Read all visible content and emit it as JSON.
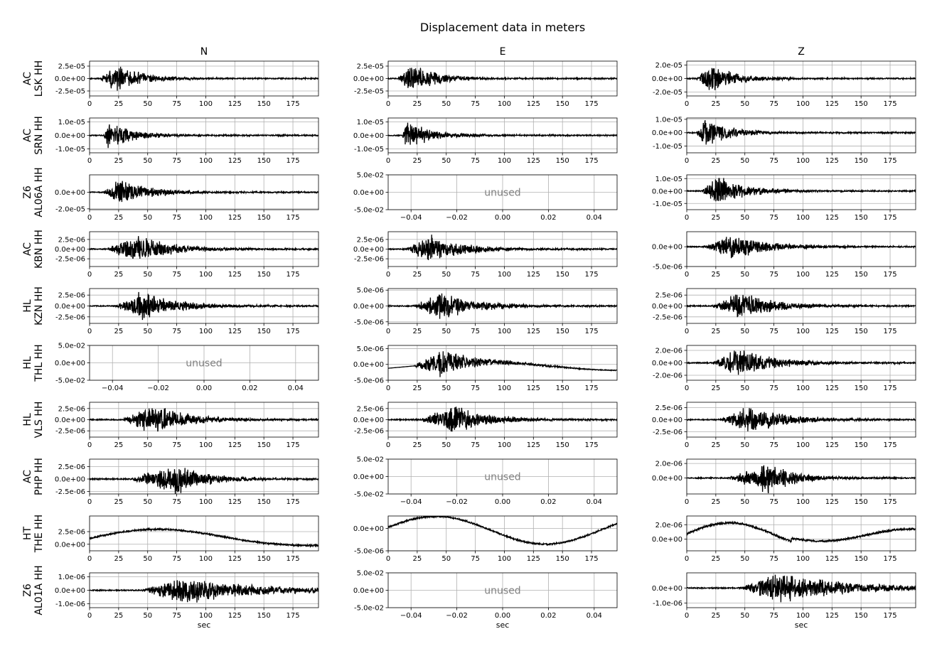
{
  "chart_data": {
    "type": "line",
    "title": "Displacement data in meters",
    "columns": [
      "N",
      "E",
      "Z"
    ],
    "xlabel": "sec",
    "unused_label": "unused",
    "grid": true,
    "line_color": "#000000",
    "unused_color": "#808080",
    "time_xlim": [
      0,
      197
    ],
    "time_xticks": [
      0,
      25,
      50,
      75,
      100,
      125,
      150,
      175
    ],
    "time_xtick_labels": [
      "0",
      "25",
      "50",
      "75",
      "100",
      "125",
      "150",
      "175"
    ],
    "unused_xlim": [
      -0.05,
      0.05
    ],
    "unused_xticks": [
      -0.04,
      -0.02,
      0.0,
      0.02,
      0.04
    ],
    "unused_xtick_labels": [
      "−0.04",
      "−0.02",
      "0.00",
      "0.02",
      "0.04"
    ],
    "unused_ylim": [
      -0.05,
      0.05
    ],
    "unused_yticks": [
      -0.05,
      0.0,
      0.05
    ],
    "unused_ytick_labels": [
      "-5.0e-02",
      "0.0e+00",
      "5.0e-02"
    ],
    "rows": [
      {
        "network": "AC",
        "station": "LSK HH",
        "panels": [
          {
            "column": "N",
            "used": true,
            "ylim": [
              -3.5e-05,
              3.5e-05
            ],
            "yticks": [
              2.5e-05,
              0,
              -2.5e-05
            ],
            "ytick_labels": [
              "2.5e-05",
              "0.0e+00",
              "-2.5e-05"
            ],
            "onset": 8,
            "peak_time": 25,
            "peak_amp": 3.3e-05,
            "decay": 22,
            "drift": 0
          },
          {
            "column": "E",
            "used": true,
            "ylim": [
              -3.5e-05,
              3.5e-05
            ],
            "yticks": [
              2.5e-05,
              0,
              -2.5e-05
            ],
            "ytick_labels": [
              "2.5e-05",
              "0.0e+00",
              "-2.5e-05"
            ],
            "onset": 8,
            "peak_time": 20,
            "peak_amp": 3.2e-05,
            "decay": 22,
            "drift": 0
          },
          {
            "column": "Z",
            "used": true,
            "ylim": [
              -2.6e-05,
              2.6e-05
            ],
            "yticks": [
              2e-05,
              0,
              -2e-05
            ],
            "ytick_labels": [
              "2.0e-05",
              "0.0e+00",
              "-2.0e-05"
            ],
            "onset": 8,
            "peak_time": 20,
            "peak_amp": 2.4e-05,
            "decay": 22,
            "drift": 0
          }
        ]
      },
      {
        "network": "AC",
        "station": "SRN HH",
        "panels": [
          {
            "column": "N",
            "used": true,
            "ylim": [
              -1.3e-05,
              1.3e-05
            ],
            "yticks": [
              1e-05,
              0,
              -1e-05
            ],
            "ytick_labels": [
              "1.0e-05",
              "0.0e+00",
              "-1.0e-05"
            ],
            "onset": 12,
            "peak_time": 16,
            "peak_amp": 1.2e-05,
            "decay": 22,
            "drift": 0
          },
          {
            "column": "E",
            "used": true,
            "ylim": [
              -1.3e-05,
              1.3e-05
            ],
            "yticks": [
              1e-05,
              0,
              -1e-05
            ],
            "ytick_labels": [
              "1.0e-05",
              "0.0e+00",
              "-1.0e-05"
            ],
            "onset": 12,
            "peak_time": 16,
            "peak_amp": 1.2e-05,
            "decay": 22,
            "drift": 0
          },
          {
            "column": "Z",
            "used": true,
            "ylim": [
              -1.5e-05,
              1.1e-05
            ],
            "yticks": [
              1e-05,
              0,
              -1e-05
            ],
            "ytick_labels": [
              "1.0e-05",
              "0.0e+00",
              "-1.0e-05"
            ],
            "onset": 8,
            "peak_time": 16,
            "peak_amp": 1.3e-05,
            "decay": 22,
            "drift": 0
          }
        ]
      },
      {
        "network": "Z6",
        "station": "AL06A HH",
        "panels": [
          {
            "column": "N",
            "used": true,
            "ylim": [
              -2.1e-05,
              2.1e-05
            ],
            "yticks": [
              0,
              -2e-05
            ],
            "ytick_labels": [
              "0.0e+00",
              "-2.0e-05"
            ],
            "onset": 12,
            "peak_time": 27,
            "peak_amp": 1.9e-05,
            "decay": 25,
            "drift": 0
          },
          {
            "column": "E",
            "used": false
          },
          {
            "column": "Z",
            "used": true,
            "ylim": [
              -1.5e-05,
              1.3e-05
            ],
            "yticks": [
              1e-05,
              0,
              -1e-05
            ],
            "ytick_labels": [
              "1.0e-05",
              "0.0e+00",
              "-1.0e-05"
            ],
            "onset": 12,
            "peak_time": 27,
            "peak_amp": 1.3e-05,
            "decay": 25,
            "drift": 0
          }
        ]
      },
      {
        "network": "AC",
        "station": "KBN HH",
        "panels": [
          {
            "column": "N",
            "used": true,
            "ylim": [
              -4.5e-06,
              4.5e-06
            ],
            "yticks": [
              2.5e-06,
              0,
              -2.5e-06
            ],
            "ytick_labels": [
              "2.5e-06",
              "0.0e+00",
              "-2.5e-06"
            ],
            "onset": 15,
            "peak_time": 40,
            "peak_amp": 4.2e-06,
            "decay": 30,
            "drift": 0
          },
          {
            "column": "E",
            "used": true,
            "ylim": [
              -4.5e-06,
              4.5e-06
            ],
            "yticks": [
              2.5e-06,
              0,
              -2.5e-06
            ],
            "ytick_labels": [
              "2.5e-06",
              "0.0e+00",
              "-2.5e-06"
            ],
            "onset": 15,
            "peak_time": 35,
            "peak_amp": 4.2e-06,
            "decay": 30,
            "drift": 0
          },
          {
            "column": "Z",
            "used": true,
            "ylim": [
              -5e-06,
              3.8e-06
            ],
            "yticks": [
              0,
              -5e-06
            ],
            "ytick_labels": [
              "0.0e+00",
              "-5.0e-06"
            ],
            "onset": 15,
            "peak_time": 40,
            "peak_amp": 3.8e-06,
            "decay": 30,
            "drift": 0
          }
        ]
      },
      {
        "network": "HL",
        "station": "KZN HH",
        "panels": [
          {
            "column": "N",
            "used": true,
            "ylim": [
              -4e-06,
              4e-06
            ],
            "yticks": [
              2.5e-06,
              0,
              -2.5e-06
            ],
            "ytick_labels": [
              "2.5e-06",
              "0.0e+00",
              "-2.5e-06"
            ],
            "onset": 22,
            "peak_time": 45,
            "peak_amp": 3.8e-06,
            "decay": 30,
            "drift": 0
          },
          {
            "column": "E",
            "used": true,
            "ylim": [
              -5.5e-06,
              5.5e-06
            ],
            "yticks": [
              5e-06,
              0,
              -5e-06
            ],
            "ytick_labels": [
              "5.0e-06",
              "0.0e+00",
              "-5.0e-06"
            ],
            "onset": 22,
            "peak_time": 45,
            "peak_amp": 5.2e-06,
            "decay": 30,
            "drift": 0
          },
          {
            "column": "Z",
            "used": true,
            "ylim": [
              -4e-06,
              4e-06
            ],
            "yticks": [
              2.5e-06,
              0,
              -2.5e-06
            ],
            "ytick_labels": [
              "2.5e-06",
              "0.0e+00",
              "-2.5e-06"
            ],
            "onset": 22,
            "peak_time": 45,
            "peak_amp": 3.8e-06,
            "decay": 30,
            "drift": 0
          }
        ]
      },
      {
        "network": "HL",
        "station": "THL HH",
        "panels": [
          {
            "column": "N",
            "used": false
          },
          {
            "column": "E",
            "used": true,
            "ylim": [
              -5e-06,
              6e-06
            ],
            "yticks": [
              5e-06,
              0,
              -5e-06
            ],
            "ytick_labels": [
              "5.0e-06",
              "0.0e+00",
              "-5.0e-06"
            ],
            "onset": 22,
            "peak_time": 45,
            "peak_amp": 5e-06,
            "decay": 30,
            "drift": 1
          },
          {
            "column": "Z",
            "used": true,
            "ylim": [
              -2.8e-06,
              2.8e-06
            ],
            "yticks": [
              2e-06,
              0,
              -2e-06
            ],
            "ytick_labels": [
              "2.0e-06",
              "0.0e+00",
              "-2.0e-06"
            ],
            "onset": 22,
            "peak_time": 45,
            "peak_amp": 2.7e-06,
            "decay": 30,
            "drift": 0
          }
        ]
      },
      {
        "network": "HL",
        "station": "VLS HH",
        "panels": [
          {
            "column": "N",
            "used": true,
            "ylim": [
              -3.9e-06,
              3.9e-06
            ],
            "yticks": [
              2.5e-06,
              0,
              -2.5e-06
            ],
            "ytick_labels": [
              "2.5e-06",
              "0.0e+00",
              "-2.5e-06"
            ],
            "onset": 28,
            "peak_time": 55,
            "peak_amp": 3.8e-06,
            "decay": 30,
            "drift": 0
          },
          {
            "column": "E",
            "used": true,
            "ylim": [
              -3.9e-06,
              3.9e-06
            ],
            "yticks": [
              2.5e-06,
              0,
              -2.5e-06
            ],
            "ytick_labels": [
              "2.5e-06",
              "0.0e+00",
              "-2.5e-06"
            ],
            "onset": 28,
            "peak_time": 55,
            "peak_amp": 3.8e-06,
            "decay": 30,
            "drift": 0
          },
          {
            "column": "Z",
            "used": true,
            "ylim": [
              -3.6e-06,
              3.6e-06
            ],
            "yticks": [
              2.5e-06,
              0,
              -2.5e-06
            ],
            "ytick_labels": [
              "2.5e-06",
              "0.0e+00",
              "-2.5e-06"
            ],
            "onset": 28,
            "peak_time": 55,
            "peak_amp": 3.4e-06,
            "decay": 30,
            "drift": 0
          }
        ]
      },
      {
        "network": "AC",
        "station": "PHP HH",
        "panels": [
          {
            "column": "N",
            "used": true,
            "ylim": [
              -3e-06,
              4e-06
            ],
            "yticks": [
              2.5e-06,
              0,
              -2.5e-06
            ],
            "ytick_labels": [
              "2.5e-06",
              "0.0e+00",
              "-2.5e-06"
            ],
            "onset": 35,
            "peak_time": 75,
            "peak_amp": 3.6e-06,
            "decay": 25,
            "drift": 0
          },
          {
            "column": "E",
            "used": false
          },
          {
            "column": "Z",
            "used": true,
            "ylim": [
              -2.2e-06,
              2.6e-06
            ],
            "yticks": [
              2e-06,
              0
            ],
            "ytick_labels": [
              "2.0e-06",
              "0.0e+00"
            ],
            "onset": 35,
            "peak_time": 70,
            "peak_amp": 2.3e-06,
            "decay": 25,
            "drift": 0
          }
        ]
      },
      {
        "network": "HT",
        "station": "THE HH",
        "panels": [
          {
            "column": "N",
            "used": true,
            "ylim": [
              -1.3e-06,
              5.6e-06
            ],
            "yticks": [
              2.5e-06,
              0
            ],
            "ytick_labels": [
              "2.5e-06",
              "0.0e+00"
            ],
            "onset": 0,
            "peak_time": 0,
            "peak_amp": 0,
            "decay": 1,
            "drift": 2
          },
          {
            "column": "E",
            "used": true,
            "ylim": [
              -5e-06,
              2.8e-06
            ],
            "yticks": [
              0,
              -5e-06
            ],
            "ytick_labels": [
              "0.0e+00",
              "-5.0e-06"
            ],
            "onset": 0,
            "peak_time": 0,
            "peak_amp": 0,
            "decay": 1,
            "drift": 3
          },
          {
            "column": "Z",
            "used": true,
            "ylim": [
              -1.6e-06,
              3.2e-06
            ],
            "yticks": [
              2e-06,
              0
            ],
            "ytick_labels": [
              "2.0e-06",
              "0.0e+00"
            ],
            "onset": 0,
            "peak_time": 0,
            "peak_amp": 0,
            "decay": 1,
            "drift": 4
          }
        ]
      },
      {
        "network": "Z6",
        "station": "AL01A HH",
        "panels": [
          {
            "column": "N",
            "used": true,
            "ylim": [
              -1.3e-06,
              1.3e-06
            ],
            "yticks": [
              1e-06,
              0,
              -1e-06
            ],
            "ytick_labels": [
              "1.0e-06",
              "0.0e+00",
              "-1.0e-06"
            ],
            "onset": 45,
            "peak_time": 80,
            "peak_amp": 1.2e-06,
            "decay": 60,
            "drift": 0
          },
          {
            "column": "E",
            "used": false
          },
          {
            "column": "Z",
            "used": true,
            "ylim": [
              -1.3e-06,
              1e-06
            ],
            "yticks": [
              0,
              -1e-06
            ],
            "ytick_labels": [
              "0.0e+00",
              "-1.0e-06"
            ],
            "onset": 45,
            "peak_time": 80,
            "peak_amp": 1.1e-06,
            "decay": 60,
            "drift": 0
          }
        ]
      }
    ]
  }
}
